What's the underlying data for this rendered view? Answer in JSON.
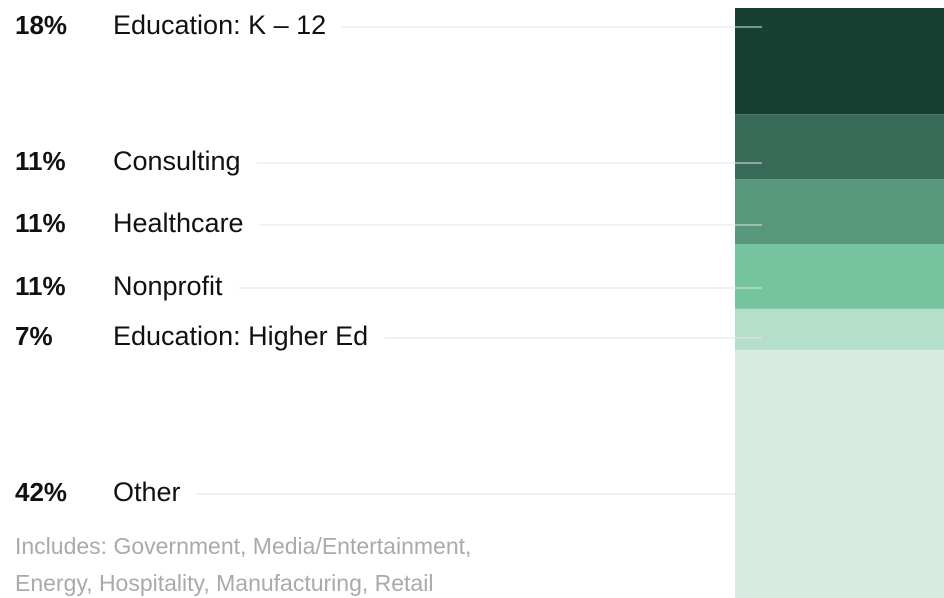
{
  "chart_data": {
    "type": "bar",
    "stacked": true,
    "categories": [
      "Education: K – 12",
      "Consulting",
      "Healthcare",
      "Nonprofit",
      "Education: Higher Ed",
      "Other"
    ],
    "values": [
      18,
      11,
      11,
      11,
      7,
      42
    ],
    "value_labels": [
      "18%",
      "11%",
      "11%",
      "11%",
      "7%",
      "42%"
    ],
    "colors": [
      "#174032",
      "#376b58",
      "#57977c",
      "#75c39f",
      "#b6dfcb",
      "#d5ebe1"
    ],
    "note": [
      "Includes: Government, Media/Entertainment,",
      "Energy, Hospitality, Manufacturing, Retail"
    ]
  }
}
